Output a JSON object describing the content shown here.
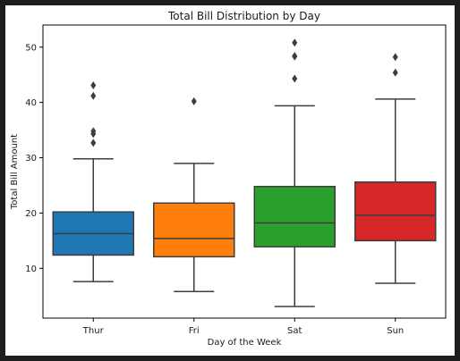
{
  "chart_data": {
    "type": "box",
    "title": "Total Bill Distribution by Day",
    "xlabel": "Day of the Week",
    "ylabel": "Total Bill Amount",
    "ylim": [
      1,
      54
    ],
    "yticks": [
      10,
      20,
      30,
      40,
      50
    ],
    "grid": false,
    "categories": [
      "Thur",
      "Fri",
      "Sat",
      "Sun"
    ],
    "boxes": [
      {
        "category": "Thur",
        "whisker_low": 7.6,
        "q1": 12.4,
        "median": 16.3,
        "q3": 20.2,
        "whisker_high": 29.8,
        "outliers": [
          32.7,
          34.3,
          34.8,
          41.2,
          43.1
        ],
        "color": "#1f77b4"
      },
      {
        "category": "Fri",
        "whisker_low": 5.8,
        "q1": 12.1,
        "median": 15.4,
        "q3": 21.8,
        "whisker_high": 28.97,
        "outliers": [
          40.2
        ],
        "color": "#ff7f0e"
      },
      {
        "category": "Sat",
        "whisker_low": 3.1,
        "q1": 13.9,
        "median": 18.2,
        "q3": 24.8,
        "whisker_high": 39.4,
        "outliers": [
          44.3,
          48.3,
          48.4,
          50.8
        ],
        "color": "#2ca02c"
      },
      {
        "category": "Sun",
        "whisker_low": 7.3,
        "q1": 15.0,
        "median": 19.6,
        "q3": 25.6,
        "whisker_high": 40.6,
        "outliers": [
          45.4,
          48.2
        ],
        "color": "#d62728"
      }
    ]
  }
}
